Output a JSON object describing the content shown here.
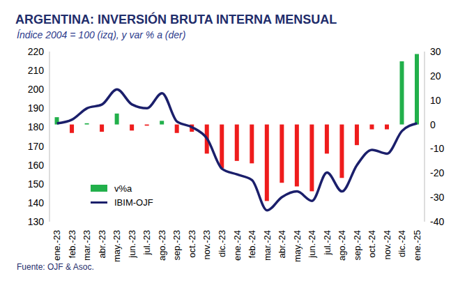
{
  "chart_data": {
    "type": "combo",
    "title": "ARGENTINA: INVERSIÓN BRUTA INTERNA MENSUAL",
    "subtitle": "Índice 2004 = 100 (izq), y var % a (der)",
    "source": "Fuente: OJF & Asoc.",
    "categories": [
      "ene.-23",
      "feb.-23",
      "mar.-23",
      "abr.-23",
      "may.-23",
      "jun.-23",
      "jul.-23",
      "ago.-23",
      "sep.-23",
      "oct.-23",
      "nov.-23",
      "dic.-23",
      "ene.-24",
      "feb.-24",
      "mar.-24",
      "abr.-24",
      "may.-24",
      "jun.-24",
      "jul.-24",
      "ago.-24",
      "sep.-24",
      "oct.-24",
      "nov.-24",
      "dic.-24",
      "ene.-25"
    ],
    "series": [
      {
        "name": "v%a",
        "type": "bar",
        "axis": "y2",
        "color": "#22b04b",
        "colors": [
          "#22b04b",
          "#ee1c1c",
          "#22b04b",
          "#ee1c1c",
          "#22b04b",
          "#ee1c1c",
          "#ee1c1c",
          "#22b04b",
          "#ee1c1c",
          "#ee1c1c",
          "#ee1c1c",
          "#ee1c1c",
          "#ee1c1c",
          "#ee1c1c",
          "#ee1c1c",
          "#ee1c1c",
          "#ee1c1c",
          "#ee1c1c",
          "#ee1c1c",
          "#ee1c1c",
          "#ee1c1c",
          "#ee1c1c",
          "#ee1c1c",
          "#22b04b",
          "#22b04b"
        ],
        "values": [
          3,
          -3.5,
          0.5,
          -3,
          4.5,
          -2.5,
          -0.5,
          1.5,
          -3.5,
          -3,
          -12,
          -18,
          -15,
          -16,
          -31.5,
          -24,
          -25.5,
          -27.5,
          -12,
          -22,
          -8.5,
          -2,
          -2,
          26,
          29
        ]
      },
      {
        "name": "IBIM-OJF",
        "type": "line",
        "color": "#1b1f6b",
        "values": [
          182,
          184,
          190,
          192,
          200,
          192,
          190,
          198,
          183,
          180,
          174,
          158,
          155,
          152,
          136,
          143,
          146,
          141,
          156,
          146,
          160,
          168,
          166,
          178,
          182
        ]
      }
    ],
    "ylim": [
      130,
      220
    ],
    "yticks": [
      130,
      140,
      150,
      160,
      170,
      180,
      190,
      200,
      210,
      220
    ],
    "y2lim": [
      -40,
      30
    ],
    "y2ticks": [
      -40,
      -30,
      -20,
      -10,
      0,
      10,
      20,
      30
    ],
    "legend": "bottom-left",
    "grid": false
  }
}
